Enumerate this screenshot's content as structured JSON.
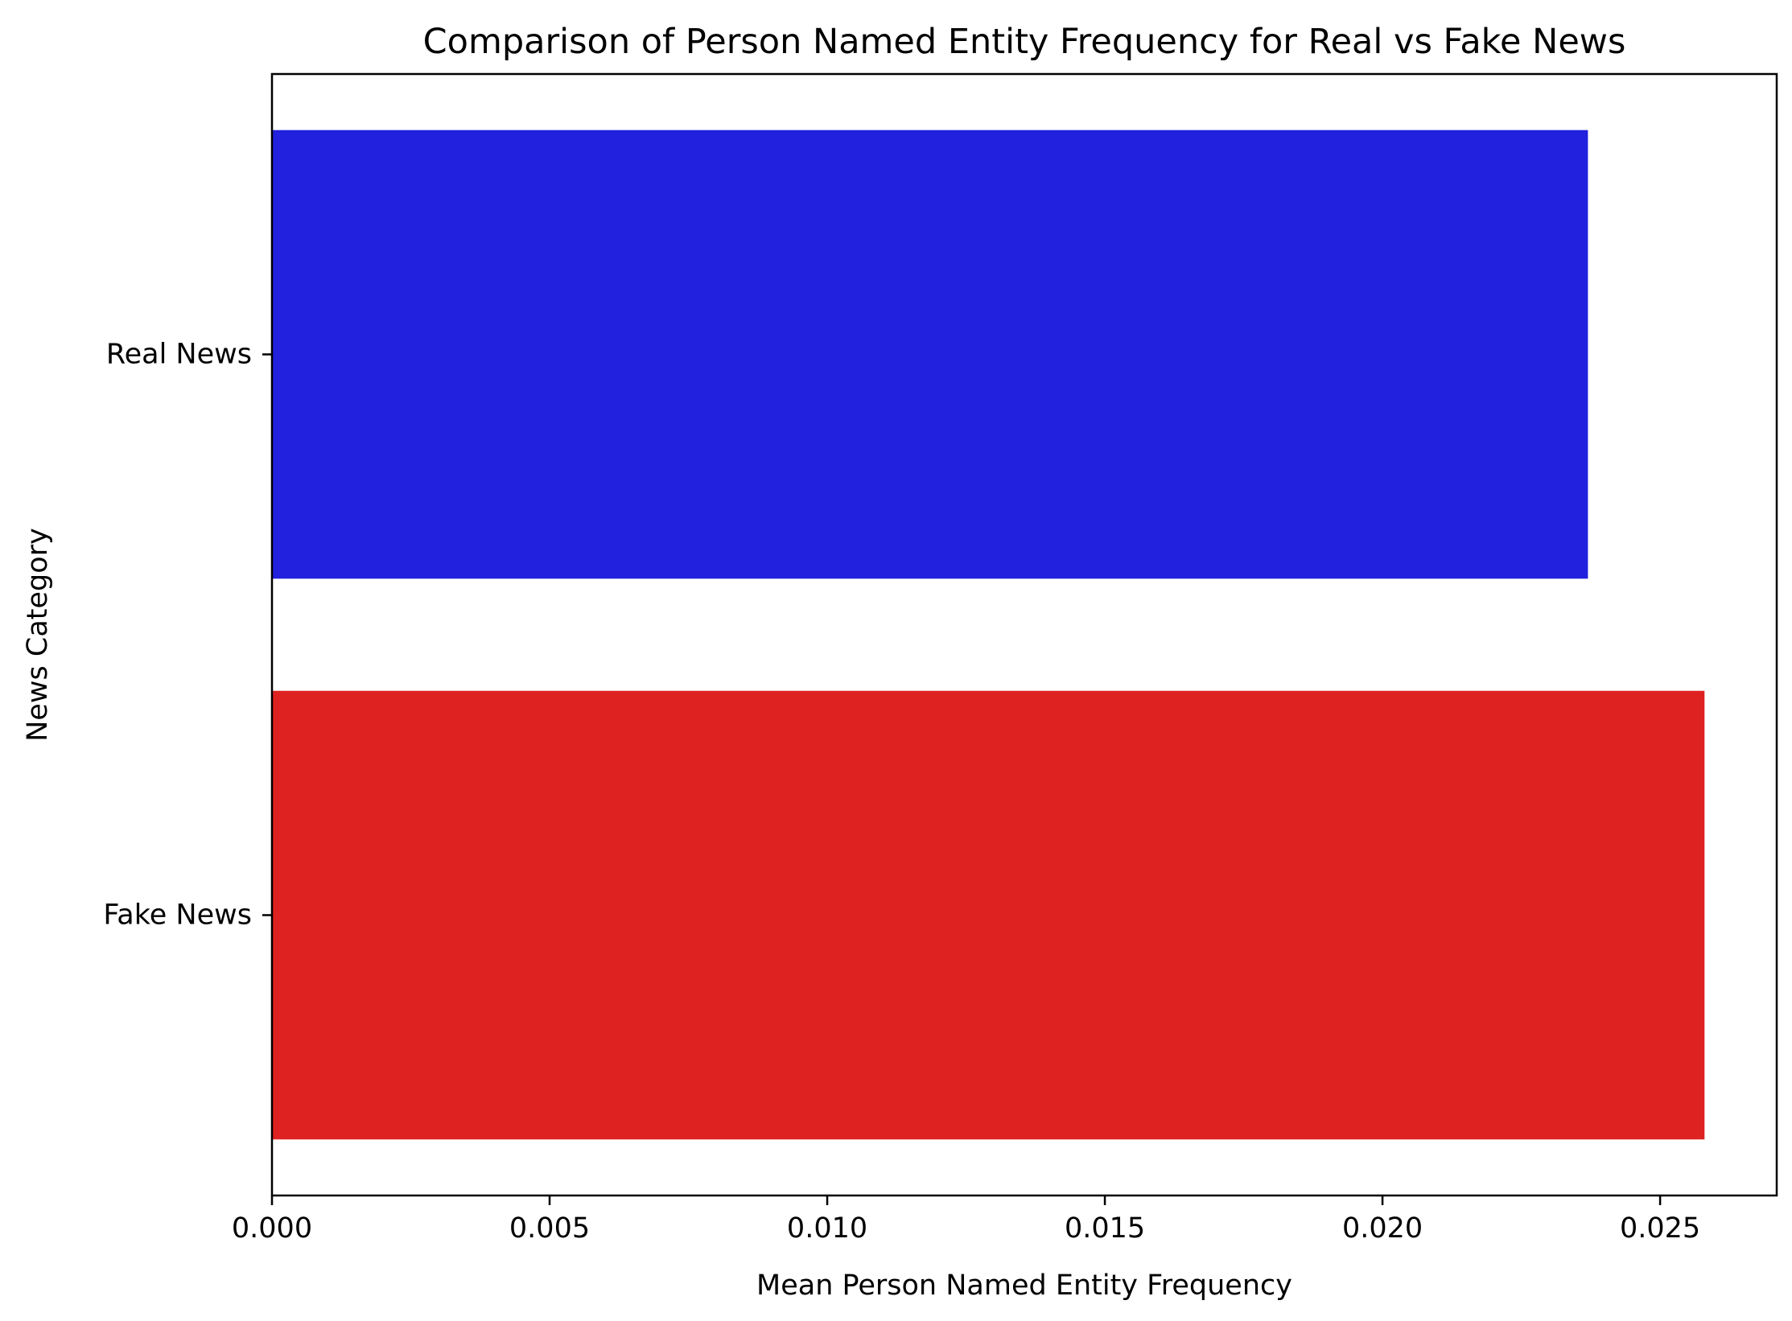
{
  "chart_data": {
    "type": "bar",
    "orientation": "horizontal",
    "title": "Comparison of Person Named Entity Frequency for Real vs Fake News",
    "xlabel": "Mean Person Named Entity Frequency",
    "ylabel": "News Category",
    "categories": [
      "Real News",
      "Fake News"
    ],
    "values": [
      0.0237,
      0.0258
    ],
    "colors": [
      "#2121de",
      "#de2121"
    ],
    "xlim": [
      0,
      0.0271
    ],
    "xticks": [
      0.0,
      0.005,
      0.01,
      0.015,
      0.02,
      0.025
    ],
    "xtick_labels": [
      "0.000",
      "0.005",
      "0.010",
      "0.015",
      "0.020",
      "0.025"
    ],
    "grid": false,
    "legend": "none"
  }
}
